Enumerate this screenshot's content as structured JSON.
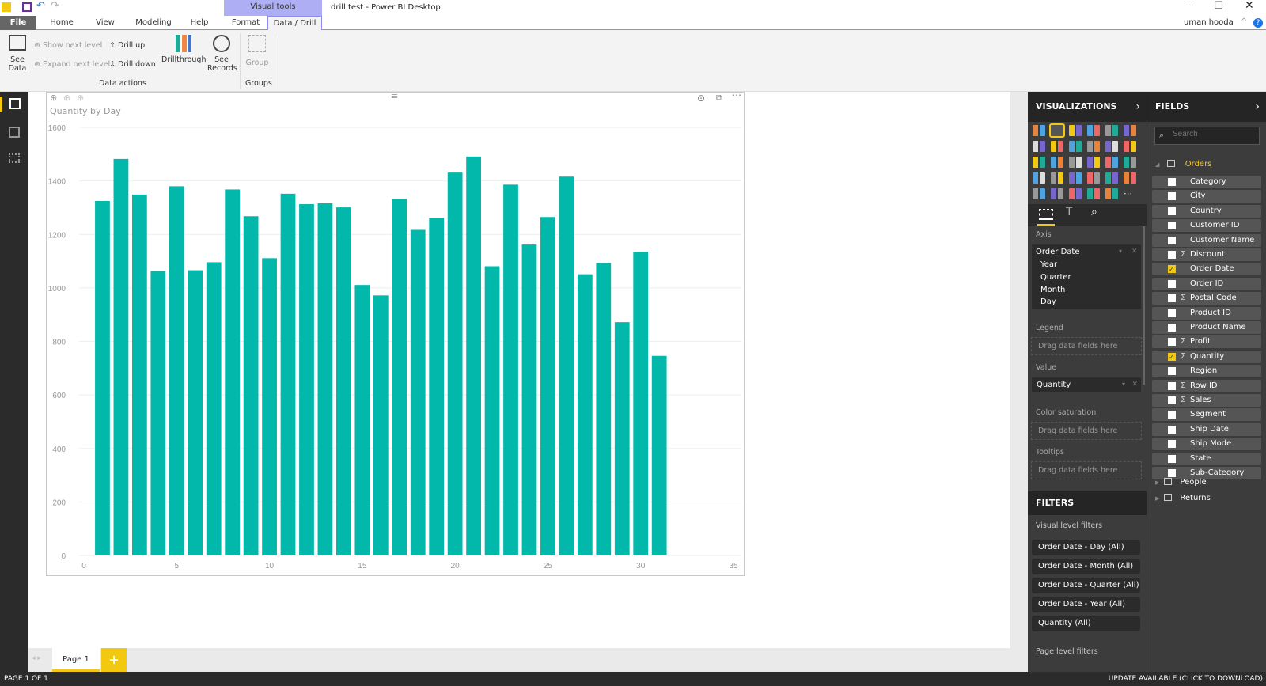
{
  "window": {
    "title": "drill test - Power BI Desktop",
    "user": "uman hooda",
    "context_tab": "Visual tools"
  },
  "tabs": [
    {
      "label": "File"
    },
    {
      "label": "Home"
    },
    {
      "label": "View"
    },
    {
      "label": "Modeling"
    },
    {
      "label": "Help"
    },
    {
      "label": "Format"
    },
    {
      "label": "Data / Drill",
      "active": true
    }
  ],
  "ribbon": {
    "see_data": "See Data",
    "show_next_level": "Show next level",
    "expand_next_level": "Expand next level",
    "drill_up": "Drill up",
    "drill_down": "Drill down",
    "drillthrough": "Drillthrough",
    "see_records": "See Records",
    "group": "Group",
    "group_data_actions": "Data actions",
    "group_groups": "Groups"
  },
  "visual": {
    "title": "Quantity by Day",
    "bar_color": "#01B8AA"
  },
  "chart_data": {
    "type": "bar",
    "title": "Quantity by Day",
    "xlabel": "",
    "ylabel": "",
    "x": [
      1,
      2,
      3,
      4,
      5,
      6,
      7,
      8,
      9,
      10,
      11,
      12,
      13,
      14,
      15,
      16,
      17,
      18,
      19,
      20,
      21,
      22,
      23,
      24,
      25,
      26,
      27,
      28,
      29,
      30,
      31
    ],
    "values": [
      1325,
      1482,
      1349,
      1063,
      1380,
      1066,
      1096,
      1368,
      1268,
      1111,
      1352,
      1313,
      1316,
      1301,
      1011,
      972,
      1334,
      1217,
      1262,
      1431,
      1491,
      1081,
      1386,
      1162,
      1265,
      1416,
      1051,
      1093,
      872,
      1135,
      746
    ],
    "xlim": [
      0,
      35
    ],
    "ylim": [
      0,
      1600
    ],
    "xticks": [
      "0",
      "5",
      "10",
      "15",
      "20",
      "25",
      "30",
      "35"
    ],
    "yticks": [
      "0",
      "200",
      "400",
      "600",
      "800",
      "1000",
      "1200",
      "1400",
      "1600"
    ],
    "grid": true
  },
  "visualizations": {
    "header": "VISUALIZATIONS",
    "wells": {
      "axis": "Axis",
      "axis_field": "Order Date",
      "axis_levels": [
        "Year",
        "Quarter",
        "Month",
        "Day"
      ],
      "legend": "Legend",
      "value": "Value",
      "value_field": "Quantity",
      "color_saturation": "Color saturation",
      "tooltips": "Tooltips",
      "placeholder": "Drag data fields here"
    }
  },
  "filters": {
    "header": "FILTERS",
    "visual_level": "Visual level filters",
    "items": [
      "Order Date - Day (All)",
      "Order Date - Month (All)",
      "Order Date - Quarter (All)",
      "Order Date - Year (All)",
      "Quantity (All)"
    ],
    "page_level": "Page level filters"
  },
  "fields": {
    "header": "FIELDS",
    "search_placeholder": "Search",
    "table": "Orders",
    "items": [
      {
        "name": "Category",
        "checked": false,
        "sigma": false
      },
      {
        "name": "City",
        "checked": false,
        "sigma": false
      },
      {
        "name": "Country",
        "checked": false,
        "sigma": false
      },
      {
        "name": "Customer ID",
        "checked": false,
        "sigma": false
      },
      {
        "name": "Customer Name",
        "checked": false,
        "sigma": false
      },
      {
        "name": "Discount",
        "checked": false,
        "sigma": true
      },
      {
        "name": "Order Date",
        "checked": true,
        "sigma": false
      },
      {
        "name": "Order ID",
        "checked": false,
        "sigma": false
      },
      {
        "name": "Postal Code",
        "checked": false,
        "sigma": true
      },
      {
        "name": "Product ID",
        "checked": false,
        "sigma": false
      },
      {
        "name": "Product Name",
        "checked": false,
        "sigma": false
      },
      {
        "name": "Profit",
        "checked": false,
        "sigma": true
      },
      {
        "name": "Quantity",
        "checked": true,
        "sigma": true
      },
      {
        "name": "Region",
        "checked": false,
        "sigma": false
      },
      {
        "name": "Row ID",
        "checked": false,
        "sigma": true
      },
      {
        "name": "Sales",
        "checked": false,
        "sigma": true
      },
      {
        "name": "Segment",
        "checked": false,
        "sigma": false
      },
      {
        "name": "Ship Date",
        "checked": false,
        "sigma": false
      },
      {
        "name": "Ship Mode",
        "checked": false,
        "sigma": false
      },
      {
        "name": "State",
        "checked": false,
        "sigma": false
      },
      {
        "name": "Sub-Category",
        "checked": false,
        "sigma": false
      }
    ],
    "other_tables": [
      "People",
      "Returns"
    ]
  },
  "pages": {
    "tabs": [
      "Page 1"
    ],
    "add": "+"
  },
  "status": {
    "page": "PAGE 1 OF 1",
    "update": "UPDATE AVAILABLE (CLICK TO DOWNLOAD)"
  }
}
